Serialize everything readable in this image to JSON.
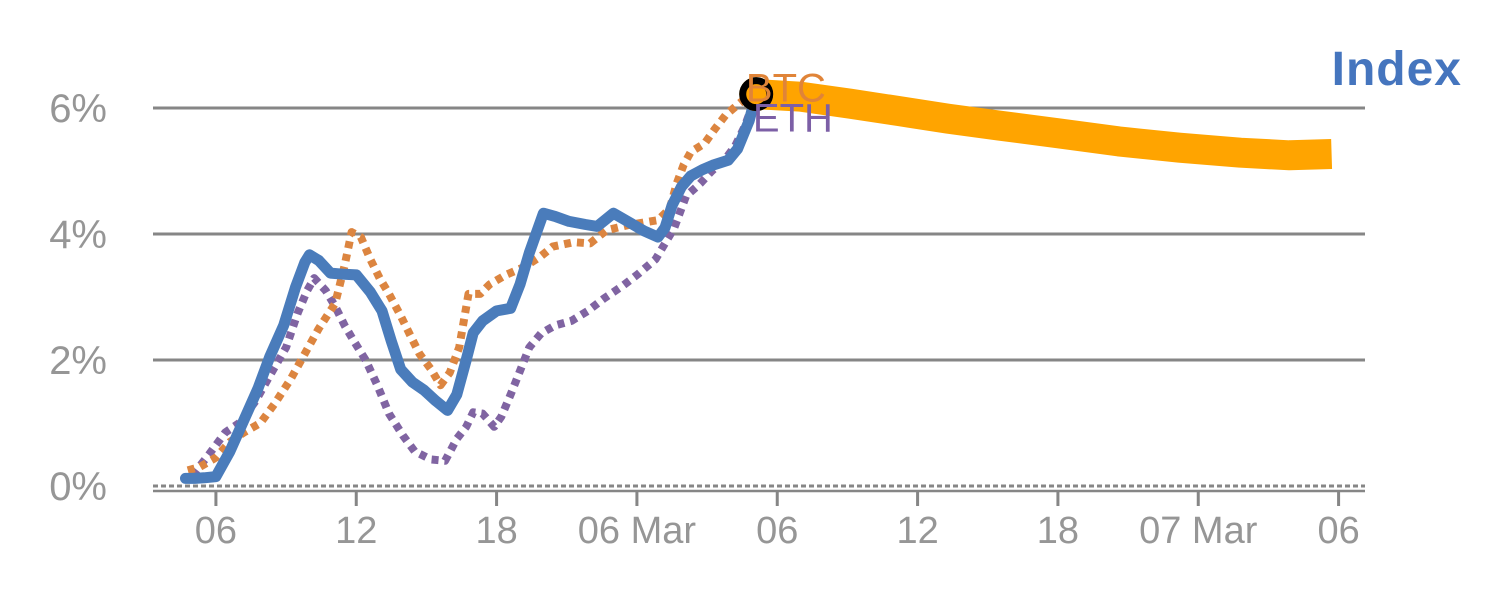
{
  "page": {
    "background": "#FFFFFF"
  },
  "chart_data": {
    "type": "line",
    "title": "",
    "legend_label": "Index",
    "x_unit": "time (hours), 05 Mar through 07 Mar",
    "grid": "horizontal",
    "xlim_t": [
      3.31,
      55.13
    ],
    "ylim": [
      0,
      7
    ],
    "axis_color": "#868686",
    "tick_text_color": "#969696",
    "x_ticks": [
      {
        "t": 6,
        "label": "06"
      },
      {
        "t": 12,
        "label": "12"
      },
      {
        "t": 18,
        "label": "18"
      },
      {
        "t": 24,
        "label": "06 Mar"
      },
      {
        "t": 30,
        "label": "06"
      },
      {
        "t": 36,
        "label": "12"
      },
      {
        "t": 42,
        "label": "18"
      },
      {
        "t": 48,
        "label": "07 Mar"
      },
      {
        "t": 54,
        "label": "06"
      }
    ],
    "y_ticks": [
      {
        "v": 0,
        "label": "0%"
      },
      {
        "v": 2,
        "label": "2%"
      },
      {
        "v": 4,
        "label": "4%"
      },
      {
        "v": 6,
        "label": "6%"
      }
    ],
    "series": [
      {
        "name": "ETH",
        "style": "dotted",
        "color": "#8064A2",
        "width": 8,
        "points": [
          [
            5.0,
            0.17
          ],
          [
            5.7,
            0.5
          ],
          [
            6.4,
            0.85
          ],
          [
            7.0,
            1.0
          ],
          [
            7.7,
            1.35
          ],
          [
            8.3,
            1.75
          ],
          [
            9.0,
            2.2
          ],
          [
            9.5,
            2.75
          ],
          [
            9.9,
            3.1
          ],
          [
            10.2,
            3.3
          ],
          [
            10.7,
            3.1
          ],
          [
            11.1,
            2.85
          ],
          [
            11.5,
            2.55
          ],
          [
            11.9,
            2.3
          ],
          [
            12.4,
            2.0
          ],
          [
            12.9,
            1.6
          ],
          [
            13.4,
            1.15
          ],
          [
            14.0,
            0.8
          ],
          [
            14.5,
            0.55
          ],
          [
            15.2,
            0.42
          ],
          [
            15.8,
            0.4
          ],
          [
            16.3,
            0.75
          ],
          [
            16.7,
            0.94
          ],
          [
            17.0,
            1.17
          ],
          [
            17.4,
            1.15
          ],
          [
            17.9,
            0.94
          ],
          [
            18.2,
            1.1
          ],
          [
            18.6,
            1.45
          ],
          [
            18.9,
            1.73
          ],
          [
            19.4,
            2.2
          ],
          [
            19.9,
            2.42
          ],
          [
            20.5,
            2.55
          ],
          [
            21.2,
            2.62
          ],
          [
            21.9,
            2.78
          ],
          [
            22.6,
            2.98
          ],
          [
            23.4,
            3.18
          ],
          [
            24.1,
            3.38
          ],
          [
            24.8,
            3.6
          ],
          [
            25.2,
            3.85
          ],
          [
            25.6,
            4.1
          ],
          [
            26.1,
            4.6
          ],
          [
            26.7,
            4.8
          ],
          [
            27.2,
            5.0
          ],
          [
            27.8,
            5.2
          ],
          [
            28.2,
            5.4
          ],
          [
            28.6,
            5.7
          ],
          [
            29.0,
            6.1
          ]
        ]
      },
      {
        "name": "BTC",
        "style": "dotted",
        "color": "#DC8540",
        "width": 8,
        "points": [
          [
            4.8,
            0.25
          ],
          [
            5.3,
            0.3
          ],
          [
            6.0,
            0.45
          ],
          [
            6.6,
            0.7
          ],
          [
            7.2,
            0.85
          ],
          [
            7.9,
            1.0
          ],
          [
            8.5,
            1.3
          ],
          [
            9.2,
            1.7
          ],
          [
            9.8,
            2.1
          ],
          [
            10.4,
            2.5
          ],
          [
            11.1,
            2.9
          ],
          [
            11.5,
            3.5
          ],
          [
            11.8,
            4.03
          ],
          [
            12.2,
            3.95
          ],
          [
            12.6,
            3.6
          ],
          [
            13.0,
            3.3
          ],
          [
            13.4,
            3.05
          ],
          [
            13.9,
            2.7
          ],
          [
            14.3,
            2.4
          ],
          [
            14.7,
            2.1
          ],
          [
            15.2,
            1.85
          ],
          [
            15.6,
            1.6
          ],
          [
            16.0,
            1.8
          ],
          [
            16.4,
            2.2
          ],
          [
            16.8,
            3.05
          ],
          [
            17.3,
            3.05
          ],
          [
            17.7,
            3.2
          ],
          [
            18.4,
            3.35
          ],
          [
            19.2,
            3.48
          ],
          [
            19.9,
            3.65
          ],
          [
            20.4,
            3.8
          ],
          [
            21.3,
            3.87
          ],
          [
            22.0,
            3.85
          ],
          [
            22.7,
            4.06
          ],
          [
            23.6,
            4.14
          ],
          [
            24.9,
            4.22
          ],
          [
            25.4,
            4.4
          ],
          [
            25.7,
            4.8
          ],
          [
            26.0,
            5.1
          ],
          [
            26.3,
            5.3
          ],
          [
            26.9,
            5.44
          ],
          [
            27.3,
            5.65
          ],
          [
            27.8,
            5.89
          ],
          [
            28.3,
            6.05
          ],
          [
            28.8,
            6.2
          ],
          [
            29.1,
            6.25
          ]
        ]
      },
      {
        "name": "Index",
        "style": "solid",
        "color": "#4A7CBB",
        "width": 11,
        "points": [
          [
            4.7,
            0.12
          ],
          [
            5.1,
            0.12
          ],
          [
            5.5,
            0.13
          ],
          [
            6.0,
            0.15
          ],
          [
            6.6,
            0.55
          ],
          [
            7.2,
            1.05
          ],
          [
            7.8,
            1.55
          ],
          [
            8.3,
            2.05
          ],
          [
            8.9,
            2.55
          ],
          [
            9.4,
            3.15
          ],
          [
            9.8,
            3.55
          ],
          [
            10.0,
            3.67
          ],
          [
            10.4,
            3.58
          ],
          [
            10.9,
            3.38
          ],
          [
            11.5,
            3.36
          ],
          [
            12.0,
            3.35
          ],
          [
            12.6,
            3.08
          ],
          [
            13.1,
            2.78
          ],
          [
            13.5,
            2.3
          ],
          [
            13.9,
            1.85
          ],
          [
            14.4,
            1.65
          ],
          [
            14.9,
            1.52
          ],
          [
            15.4,
            1.35
          ],
          [
            15.9,
            1.2
          ],
          [
            16.3,
            1.45
          ],
          [
            16.7,
            2.0
          ],
          [
            17.0,
            2.43
          ],
          [
            17.4,
            2.62
          ],
          [
            18.0,
            2.78
          ],
          [
            18.6,
            2.82
          ],
          [
            19.0,
            3.2
          ],
          [
            19.4,
            3.7
          ],
          [
            20.0,
            4.33
          ],
          [
            20.5,
            4.28
          ],
          [
            21.1,
            4.2
          ],
          [
            21.8,
            4.15
          ],
          [
            22.3,
            4.12
          ],
          [
            23.0,
            4.33
          ],
          [
            23.6,
            4.2
          ],
          [
            24.3,
            4.05
          ],
          [
            24.9,
            3.95
          ],
          [
            25.2,
            4.1
          ],
          [
            25.5,
            4.45
          ],
          [
            25.9,
            4.75
          ],
          [
            26.3,
            4.92
          ],
          [
            26.8,
            5.02
          ],
          [
            27.3,
            5.1
          ],
          [
            27.9,
            5.17
          ],
          [
            28.3,
            5.35
          ],
          [
            28.8,
            5.8
          ],
          [
            29.1,
            6.22
          ]
        ]
      },
      {
        "name": "Index forecast",
        "style": "band",
        "color": "#FFA400",
        "width": 30,
        "points": [
          [
            29.1,
            6.22
          ],
          [
            31.0,
            6.18
          ],
          [
            33.1,
            6.07
          ],
          [
            35.2,
            5.95
          ],
          [
            37.3,
            5.83
          ],
          [
            39.5,
            5.72
          ],
          [
            42.0,
            5.6
          ],
          [
            44.6,
            5.47
          ],
          [
            47.2,
            5.37
          ],
          [
            49.8,
            5.29
          ],
          [
            51.9,
            5.25
          ],
          [
            53.7,
            5.27
          ]
        ]
      }
    ],
    "marker": {
      "t": 29.1,
      "v": 6.22,
      "fill_color": "#FFA400",
      "ring_color": "#000000"
    },
    "labels": [
      {
        "text": "BTC",
        "color": "#E08438",
        "t": 28.66,
        "v": 6.1,
        "anchor": "start",
        "size": 40,
        "bold": false
      },
      {
        "text": "ETH",
        "color": "#7C5FA6",
        "t": 28.96,
        "v": 5.63,
        "anchor": "start",
        "size": 40,
        "bold": false
      }
    ]
  }
}
